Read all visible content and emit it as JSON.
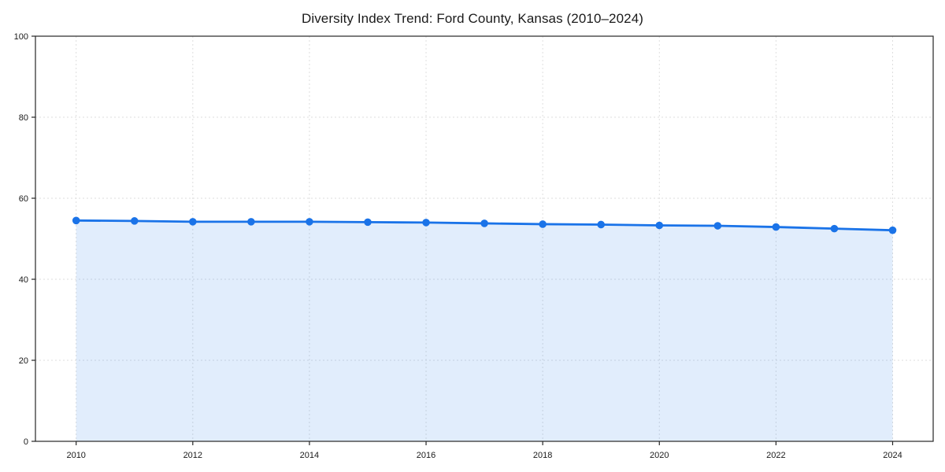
{
  "page": {
    "background_color": "#ffffff",
    "text_color": "#1a1a1a"
  },
  "chart_data": {
    "type": "area",
    "title": "Diversity Index Trend: Ford County, Kansas (2010–2024)",
    "series_name": "Diversity Index",
    "x": [
      2010,
      2011,
      2012,
      2013,
      2014,
      2015,
      2016,
      2017,
      2018,
      2019,
      2020,
      2021,
      2022,
      2023,
      2024
    ],
    "values": [
      54.5,
      54.4,
      54.2,
      54.2,
      54.2,
      54.1,
      54.0,
      53.8,
      53.6,
      53.5,
      53.3,
      53.2,
      52.9,
      52.5,
      52.1
    ],
    "xlabel": "",
    "ylabel": "",
    "ylim": [
      0,
      100
    ],
    "yticks": [
      0,
      20,
      40,
      60,
      80,
      100
    ],
    "xticks": [
      2010,
      2012,
      2014,
      2016,
      2018,
      2020,
      2022,
      2024
    ],
    "grid": true,
    "legend": "none",
    "marker": "circle",
    "line_color": "#1a73e8",
    "fill_color": "#1a73e8",
    "fill_opacity": 0.13,
    "grid_color": "#dedede",
    "axis_color": "#262626",
    "tick_label_color": "#1a1a1a"
  }
}
